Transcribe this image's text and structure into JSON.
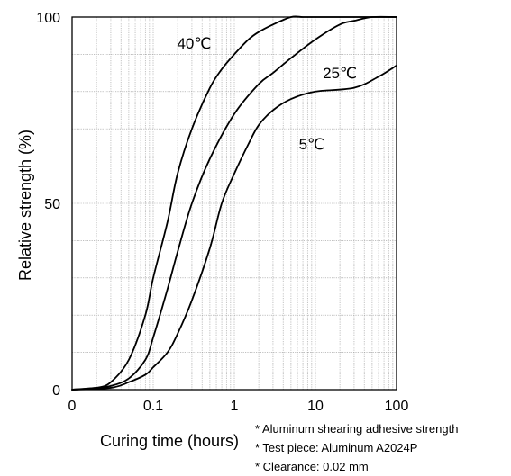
{
  "chart_data": {
    "type": "line",
    "xscale": "log",
    "title": "",
    "xlabel": "Curing time (hours)",
    "ylabel": "Relative strength (%)",
    "xlim": [
      0.01,
      100
    ],
    "ylim": [
      0,
      100
    ],
    "grid": true,
    "x_ticks": [
      {
        "value": 0.01,
        "label": "0"
      },
      {
        "value": 0.1,
        "label": "0.1"
      },
      {
        "value": 1,
        "label": "1"
      },
      {
        "value": 10,
        "label": "10"
      },
      {
        "value": 100,
        "label": "100"
      }
    ],
    "y_ticks": [
      {
        "value": 0,
        "label": "0"
      },
      {
        "value": 50,
        "label": "50"
      },
      {
        "value": 100,
        "label": "100"
      }
    ],
    "series": [
      {
        "name": "40℃",
        "label_at": [
          0.32,
          93
        ],
        "x": [
          0.01,
          0.02,
          0.03,
          0.05,
          0.08,
          0.1,
          0.15,
          0.2,
          0.3,
          0.5,
          0.7,
          1,
          1.5,
          2,
          3,
          5,
          7,
          10,
          30,
          100
        ],
        "y": [
          0,
          0.5,
          2,
          8,
          20,
          30,
          45,
          58,
          70,
          81,
          86,
          90,
          94,
          96,
          98,
          100,
          100,
          100,
          100,
          100
        ]
      },
      {
        "name": "25℃",
        "label_at": [
          20,
          85
        ],
        "x": [
          0.01,
          0.02,
          0.03,
          0.05,
          0.08,
          0.1,
          0.15,
          0.2,
          0.3,
          0.5,
          1,
          2,
          3,
          5,
          10,
          20,
          30,
          50,
          100
        ],
        "y": [
          0,
          0.5,
          1,
          3,
          8,
          14,
          27,
          37,
          50,
          62,
          74,
          82,
          85,
          89,
          94,
          98,
          99,
          100,
          100
        ]
      },
      {
        "name": "5℃",
        "label_at": [
          9,
          66
        ],
        "x": [
          0.01,
          0.03,
          0.05,
          0.08,
          0.1,
          0.15,
          0.2,
          0.3,
          0.5,
          0.7,
          1,
          1.5,
          2,
          3,
          5,
          10,
          30,
          60,
          100
        ],
        "y": [
          0,
          0.5,
          2,
          4,
          6,
          10,
          15,
          24,
          38,
          50,
          58,
          66,
          71,
          75,
          78,
          80,
          81,
          84,
          87
        ]
      }
    ]
  },
  "notes": [
    "* Aluminum shearing adhesive strength",
    "* Test piece: Aluminum A2024P",
    "* Clearance: 0.02 mm"
  ]
}
